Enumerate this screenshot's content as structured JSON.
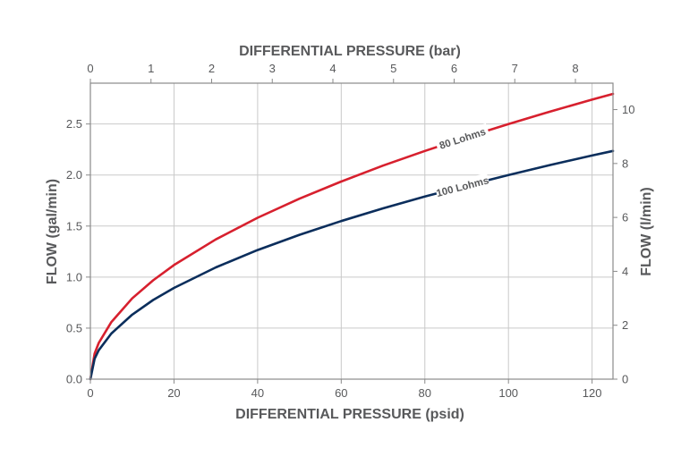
{
  "chart_data": {
    "type": "line",
    "title": "",
    "xlabel": "DIFFERENTIAL PRESSURE (psid)",
    "x2label": "DIFFERENTIAL PRESSURE (bar)",
    "ylabel": "FLOW (gal/min)",
    "y2label": "FLOW (l/min)",
    "xlim": [
      0,
      125
    ],
    "ylim": [
      0,
      2.9
    ],
    "x2lim": [
      0,
      8.62
    ],
    "y2lim": [
      0,
      10.98
    ],
    "xticks": [
      0,
      20,
      40,
      60,
      80,
      100,
      120
    ],
    "yticks": [
      0.0,
      0.5,
      1.0,
      1.5,
      2.0,
      2.5
    ],
    "ytick_labels": [
      "0.0",
      "0.5",
      "1.0",
      "1.5",
      "2.0",
      "2.5"
    ],
    "x2ticks": [
      0,
      1,
      2,
      3,
      4,
      5,
      6,
      7,
      8
    ],
    "y2ticks": [
      0,
      2,
      4,
      6,
      8,
      10
    ],
    "grid": true,
    "series": [
      {
        "name": "80 Lohms",
        "color": "#d7202e",
        "x": [
          0,
          1,
          2,
          5,
          10,
          15,
          20,
          30,
          40,
          50,
          60,
          70,
          80,
          90,
          100,
          110,
          120,
          125
        ],
        "y": [
          0.0,
          0.25,
          0.354,
          0.559,
          0.791,
          0.968,
          1.118,
          1.369,
          1.581,
          1.768,
          1.936,
          2.092,
          2.236,
          2.372,
          2.5,
          2.622,
          2.739,
          2.795
        ]
      },
      {
        "name": "100 Lohms",
        "color": "#0b2e5c",
        "x": [
          0,
          1,
          2,
          5,
          10,
          15,
          20,
          30,
          40,
          50,
          60,
          70,
          80,
          90,
          100,
          110,
          120,
          125
        ],
        "y": [
          0.0,
          0.2,
          0.283,
          0.447,
          0.632,
          0.775,
          0.894,
          1.095,
          1.265,
          1.414,
          1.549,
          1.673,
          1.789,
          1.897,
          2.0,
          2.098,
          2.191,
          2.236
        ]
      }
    ],
    "annotations": [
      "80 Lohms",
      "100 Lohms"
    ]
  }
}
